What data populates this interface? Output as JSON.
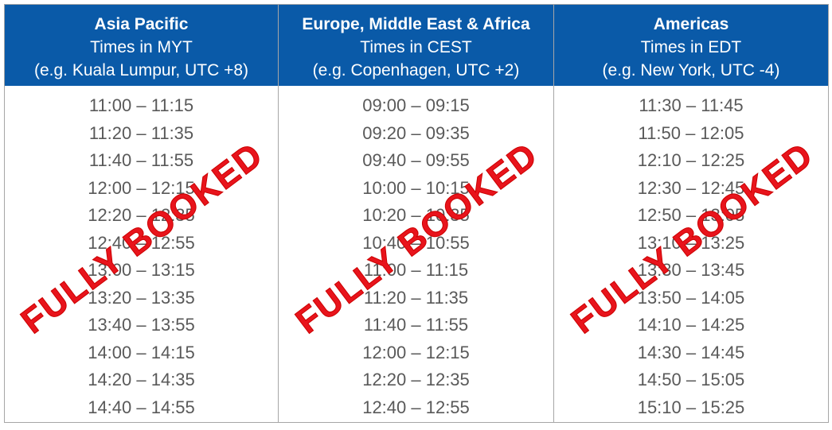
{
  "columns": [
    {
      "title": "Asia Pacific",
      "timezone": "Times in MYT",
      "example": "(e.g. Kuala Lumpur, UTC +8)",
      "stamp": "FULLY BOOKED",
      "slots": [
        "11:00 – 11:15",
        "11:20 – 11:35",
        "11:40 – 11:55",
        "12:00 – 12:15",
        "12:20 – 12:35",
        "12:40 – 12:55",
        "13:00 – 13:15",
        "13:20 – 13:35",
        "13:40 – 13:55",
        "14:00 – 14:15",
        "14:20 – 14:35",
        "14:40 – 14:55"
      ]
    },
    {
      "title": "Europe, Middle East & Africa",
      "timezone": "Times in CEST",
      "example": "(e.g. Copenhagen, UTC +2)",
      "stamp": "FULLY BOOKED",
      "slots": [
        "09:00 – 09:15",
        "09:20 – 09:35",
        "09:40 – 09:55",
        "10:00 – 10:15",
        "10:20 – 10:35",
        "10:40 – 10:55",
        "11:00 – 11:15",
        "11:20 – 11:35",
        "11:40 – 11:55",
        "12:00 – 12:15",
        "12:20 – 12:35",
        "12:40 – 12:55"
      ]
    },
    {
      "title": "Americas",
      "timezone": "Times in EDT",
      "example": "(e.g. New York, UTC -4)",
      "stamp": "FULLY BOOKED",
      "slots": [
        "11:30 – 11:45",
        "11:50 – 12:05",
        "12:10 – 12:25",
        "12:30 – 12:45",
        "12:50 – 13:05",
        "13:10 – 13:25",
        "13:30 – 13:45",
        "13:50 – 14:05",
        "14:10 – 14:25",
        "14:30 – 14:45",
        "14:50 – 15:05",
        "15:10 – 15:25"
      ]
    }
  ]
}
